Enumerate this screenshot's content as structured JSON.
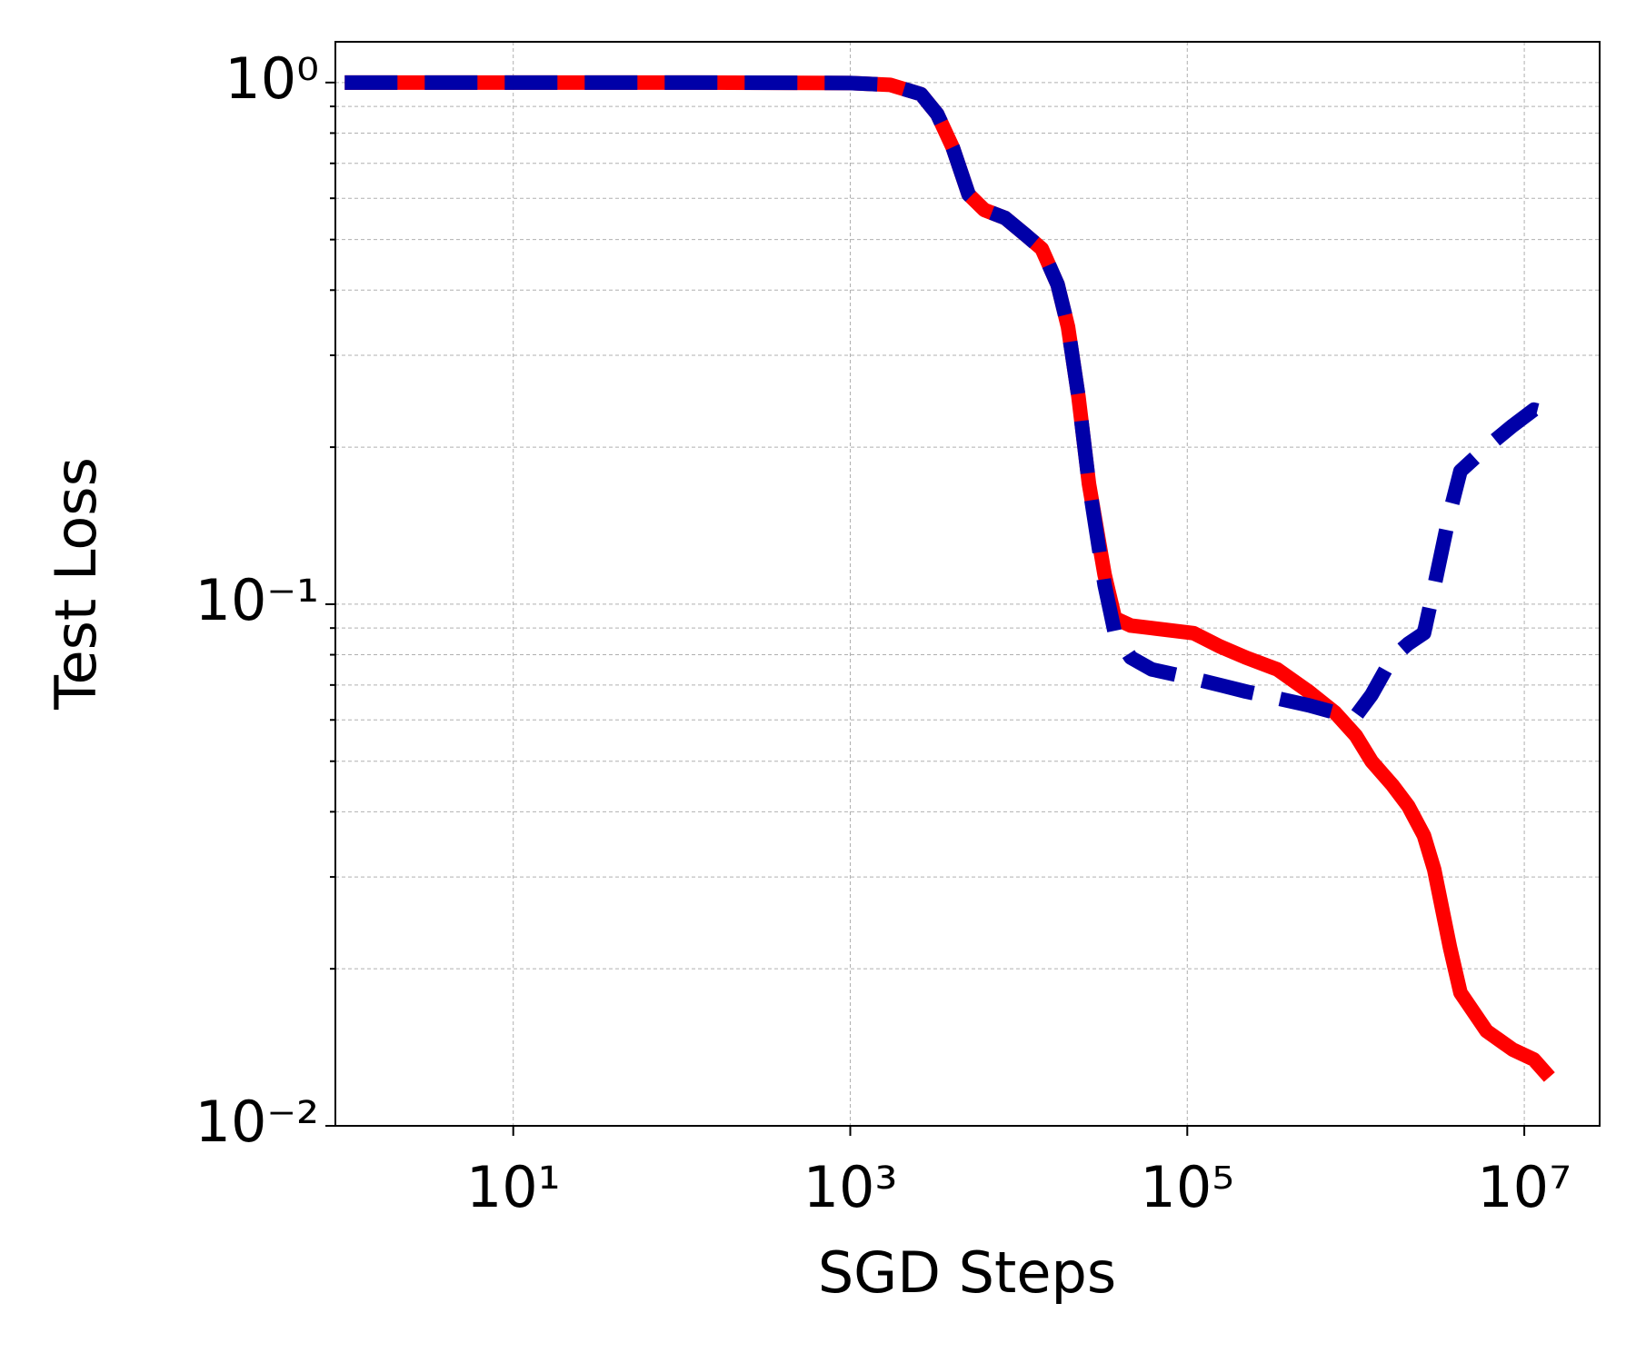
{
  "chart_data": {
    "type": "line",
    "xlabel": "SGD Steps",
    "ylabel": "Test Loss",
    "xscale": "log",
    "yscale": "log",
    "grid": true,
    "xlim": [
      0.88,
      28000000
    ],
    "ylim": [
      0.01,
      1.197
    ],
    "xticks": [
      {
        "value": 10,
        "label": "10¹"
      },
      {
        "value": 1000,
        "label": "10³"
      },
      {
        "value": 100000,
        "label": "10⁵"
      },
      {
        "value": 10000000,
        "label": "10⁷"
      }
    ],
    "yticks": [
      {
        "value": 0.01,
        "label": "10⁻²"
      },
      {
        "value": 0.1,
        "label": "10⁻¹"
      },
      {
        "value": 1,
        "label": "10⁰"
      }
    ],
    "x": [
      1,
      10,
      100,
      1000,
      1720,
      2630,
      3280,
      4060,
      5040,
      6240,
      8300,
      11000,
      13700,
      17000,
      19600,
      22600,
      26100,
      32300,
      37200,
      46200,
      61500,
      109000,
      156000,
      223000,
      342000,
      525000,
      752000,
      1000000,
      1240000,
      1650000,
      2050000,
      2540000,
      2920000,
      3620000,
      4180000,
      5970000,
      8550000,
      11400000,
      14100000
    ],
    "series": [
      {
        "color": "#ff0000",
        "linestyle": "solid",
        "values": [
          1,
          1,
          1,
          0.998,
          0.99,
          0.95,
          0.87,
          0.75,
          0.61,
          0.57,
          0.55,
          0.51,
          0.48,
          0.41,
          0.34,
          0.25,
          0.17,
          0.114,
          0.094,
          0.091,
          0.09,
          0.088,
          0.083,
          0.079,
          0.075,
          0.068,
          0.062,
          0.056,
          0.05,
          0.045,
          0.041,
          0.036,
          0.031,
          0.022,
          0.018,
          0.0152,
          0.014,
          0.0134,
          0.0124
        ]
      },
      {
        "color": "#0000a8",
        "linestyle": "dashed",
        "values": [
          1,
          1,
          1,
          0.998,
          0.99,
          0.95,
          0.87,
          0.75,
          0.61,
          0.57,
          0.55,
          0.51,
          0.48,
          0.41,
          0.34,
          0.25,
          0.17,
          0.109,
          0.088,
          0.079,
          0.075,
          0.072,
          0.07,
          0.068,
          0.066,
          0.064,
          0.062,
          0.061,
          0.067,
          0.079,
          0.084,
          0.088,
          0.108,
          0.15,
          0.18,
          0.2,
          0.22,
          0.236,
          0.232
        ]
      }
    ]
  }
}
